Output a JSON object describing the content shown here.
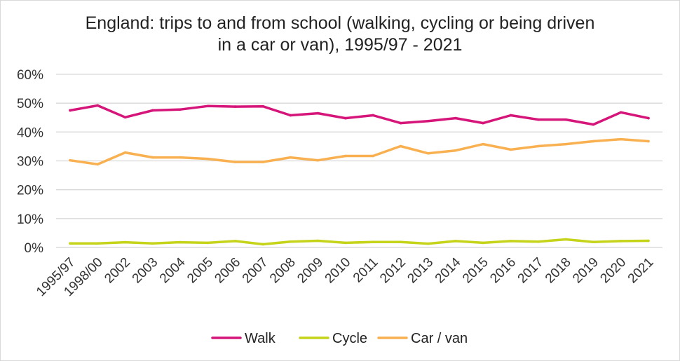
{
  "chart_data": {
    "type": "line",
    "title_line1": "England: trips to and from school (walking, cycling or being driven",
    "title_line2": "in a car or van), 1995/97 - 2021",
    "categories": [
      "1995/97",
      "1998/00",
      "2002",
      "2003",
      "2004",
      "2005",
      "2006",
      "2007",
      "2008",
      "2009",
      "2010",
      "2011",
      "2012",
      "2013",
      "2014",
      "2015",
      "2016",
      "2017",
      "2018",
      "2019",
      "2020",
      "2021"
    ],
    "series": [
      {
        "name": "Walk",
        "color": "#d6157a",
        "values": [
          47.5,
          49.2,
          45.1,
          47.5,
          47.8,
          49.0,
          48.8,
          48.9,
          45.8,
          46.5,
          44.8,
          45.8,
          43.1,
          43.8,
          44.8,
          43.1,
          45.8,
          44.3,
          44.3,
          42.6,
          46.8,
          44.8
        ]
      },
      {
        "name": "Cycle",
        "color": "#c5d319",
        "values": [
          1.4,
          1.4,
          1.8,
          1.4,
          1.8,
          1.6,
          2.2,
          1.1,
          2.0,
          2.3,
          1.6,
          1.9,
          1.9,
          1.3,
          2.2,
          1.6,
          2.2,
          2.0,
          2.8,
          1.9,
          2.2,
          2.3
        ]
      },
      {
        "name": "Car / van",
        "color": "#f8b050",
        "values": [
          30.2,
          28.8,
          32.9,
          31.2,
          31.2,
          30.7,
          29.6,
          29.6,
          31.2,
          30.2,
          31.7,
          31.7,
          35.1,
          32.6,
          33.6,
          35.8,
          33.9,
          35.1,
          35.8,
          36.8,
          37.5,
          36.8
        ]
      }
    ],
    "y_ticks": [
      "0%",
      "10%",
      "20%",
      "30%",
      "40%",
      "50%",
      "60%"
    ],
    "ylim": [
      0,
      60
    ],
    "xlabel": "",
    "ylabel": "",
    "grid": true,
    "legend_position": "bottom"
  }
}
